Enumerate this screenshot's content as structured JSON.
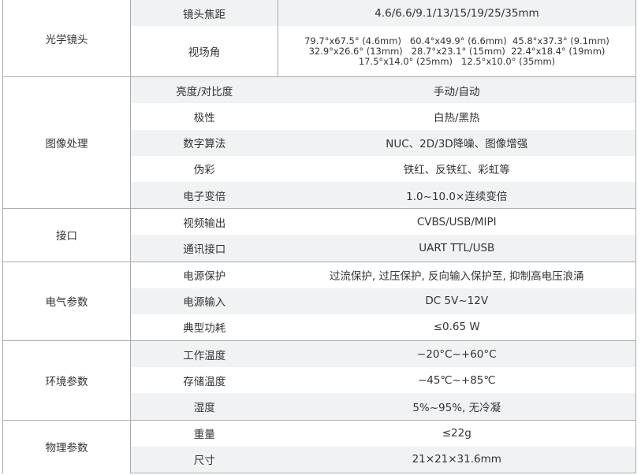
{
  "groups": [
    {
      "name": "光学镜头",
      "rows": [
        {
          "label": "镜头焦距",
          "value": "4.6/6.6/9.1/13/15/19/25/35mm"
        },
        {
          "label": "视场角",
          "value_lines": [
            "79.7°x67.5° (4.6mm)   60.4°x49.9° (6.6mm)  45.8°x37.3° (9.1mm)",
            "32.9°x26.6° (13mm)   28.7°x23.1° (15mm)  22.4°x18.4° (19mm)",
            "17.5°x14.0° (25mm)   12.5°x10.0° (35mm)"
          ]
        }
      ]
    },
    {
      "name": "图像处理",
      "rows": [
        {
          "label": "亮度/对比度",
          "value": "手动/自动"
        },
        {
          "label": "极性",
          "value": "白热/黑热"
        },
        {
          "label": "数字算法",
          "value": "NUC、2D/3D降噪、图像增强"
        },
        {
          "label": "伪彩",
          "value": "铁红、反铁红、彩虹等"
        },
        {
          "label": "电子变倍",
          "value": "1.0~10.0×连续变倍"
        }
      ]
    },
    {
      "name": "接口",
      "rows": [
        {
          "label": "视频输出",
          "value": "CVBS/USB/MIPI"
        },
        {
          "label": "通讯接口",
          "value": "UART TTL/USB"
        }
      ]
    },
    {
      "name": "电气参数",
      "rows": [
        {
          "label": "电源保护",
          "value": "过流保护, 过压保护, 反向输入保护至, 抑制高电压浪涌"
        },
        {
          "label": "电源输入",
          "value": "DC 5V~12V"
        },
        {
          "label": "典型功耗",
          "value": "≤0.65 W"
        }
      ]
    },
    {
      "name": "环境参数",
      "rows": [
        {
          "label": "工作温度",
          "value": "−20°C~+60°C"
        },
        {
          "label": "存储温度",
          "value": "−45℃~+85℃"
        },
        {
          "label": "湿度",
          "value": "5%~95%, 无冷凝"
        }
      ]
    },
    {
      "name": "物理参数",
      "rows": [
        {
          "label": "重量",
          "value": "≤22g"
        },
        {
          "label": "尺寸",
          "value": "21×21×31.6mm"
        }
      ]
    }
  ],
  "colors": {
    "shade": "#f1f2f4",
    "border": "#aaaaaa",
    "text": "#333333"
  }
}
